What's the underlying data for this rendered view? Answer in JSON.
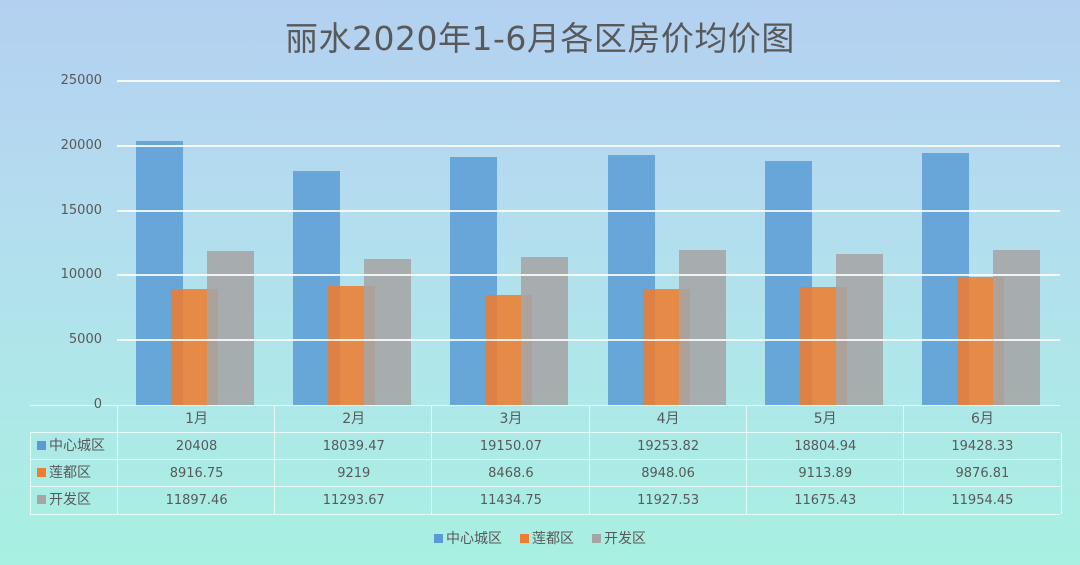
{
  "chart_data": {
    "type": "bar",
    "title": "丽水2020年1-6月各区房价均价图",
    "xlabel": "",
    "ylabel": "",
    "ylim": [
      0,
      25000
    ],
    "yticks": [
      "25000",
      "20000",
      "15000",
      "10000",
      "5000",
      "0"
    ],
    "grid": true,
    "legend_position": "bottom",
    "categories": [
      "1月",
      "2月",
      "3月",
      "4月",
      "5月",
      "6月"
    ],
    "series": [
      {
        "name": "中心城区",
        "color": "#5b9bd5",
        "values": [
          20408,
          18039.47,
          19150.07,
          19253.82,
          18804.94,
          19428.33
        ],
        "labels": [
          "20408",
          "18039.47",
          "19150.07",
          "19253.82",
          "18804.94",
          "19428.33"
        ]
      },
      {
        "name": "莲都区",
        "color": "#ed7d31",
        "values": [
          8916.75,
          9219,
          8468.6,
          8948.06,
          9113.89,
          9876.81
        ],
        "labels": [
          "8916.75",
          "9219",
          "8468.6",
          "8948.06",
          "9113.89",
          "9876.81"
        ]
      },
      {
        "name": "开发区",
        "color": "#a5a5a5",
        "values": [
          11897.46,
          11293.67,
          11434.75,
          11927.53,
          11675.43,
          11954.45
        ],
        "labels": [
          "11897.46",
          "11293.67",
          "11434.75",
          "11927.53",
          "11675.43",
          "11954.45"
        ]
      }
    ],
    "data_table": true
  }
}
